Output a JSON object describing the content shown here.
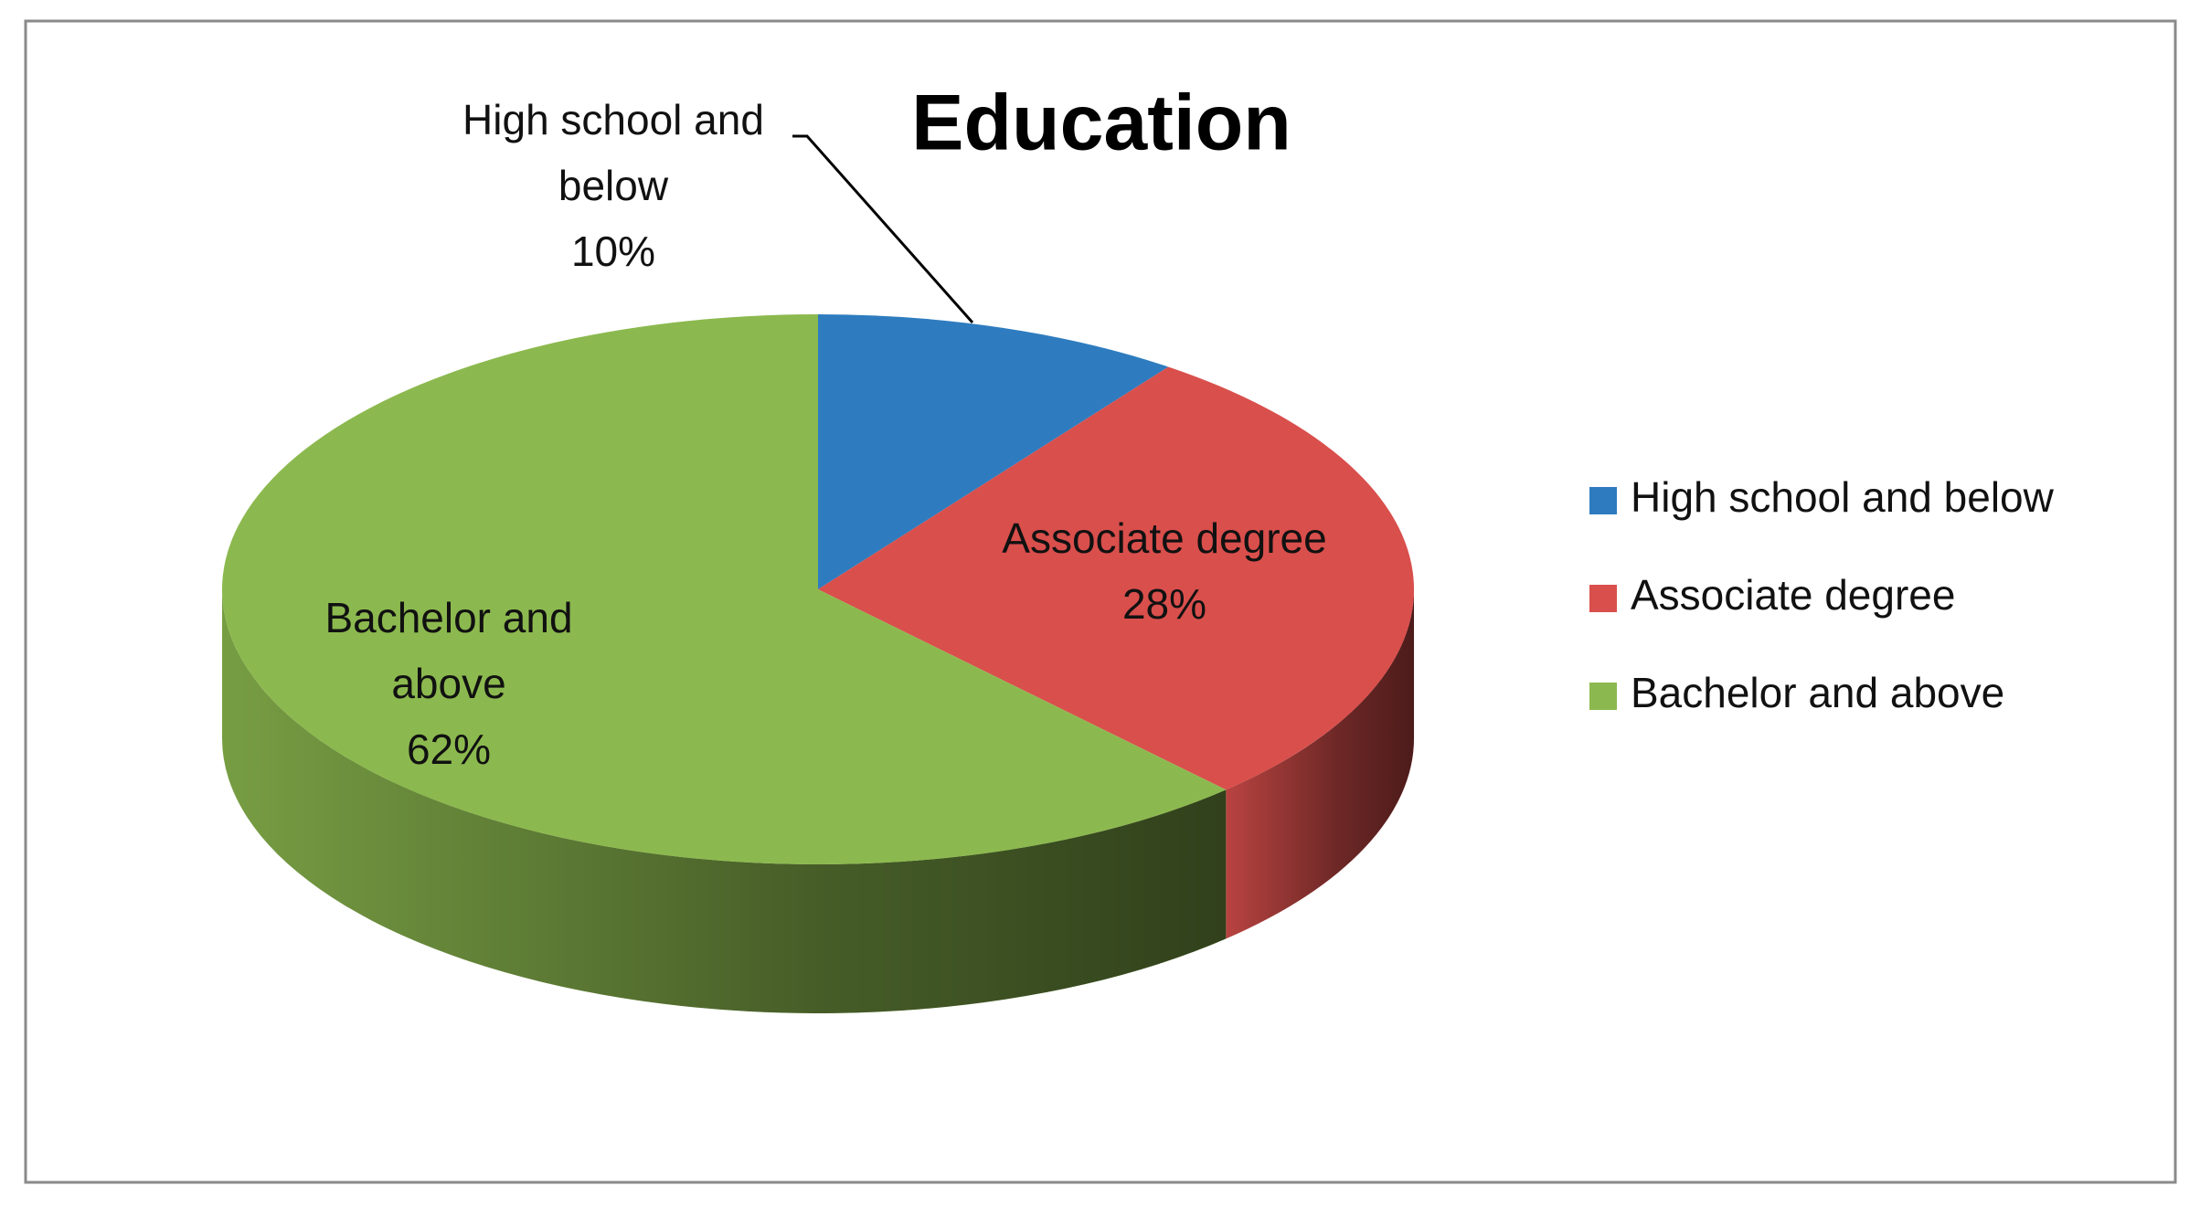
{
  "chart_data": {
    "type": "pie",
    "title": "Education",
    "categories": [
      "High school and below",
      "Associate degree",
      "Bachelor and above"
    ],
    "values": [
      10,
      28,
      62
    ],
    "value_labels": [
      "10%",
      "28%",
      "62%"
    ],
    "colors": [
      "#2e7cbf",
      "#d94f4c",
      "#8cb94f"
    ]
  }
}
